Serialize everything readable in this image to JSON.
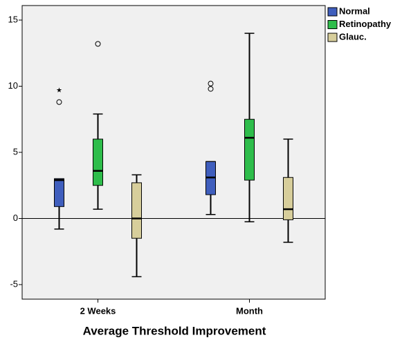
{
  "chart_data": {
    "type": "box",
    "x_label": "Average Threshold Improvement",
    "categories": [
      "2 Weeks",
      "Month"
    ],
    "ylim": [
      -6.1,
      16.1
    ],
    "yticks": [
      -5,
      0,
      5,
      10,
      15
    ],
    "reference_line": 0,
    "legend": "right",
    "series": [
      {
        "name": "Normal",
        "color": "#3f5ebd",
        "min": [
          -0.8,
          0.3
        ],
        "q1": [
          0.9,
          1.8
        ],
        "median": [
          2.9,
          3.1
        ],
        "q3": [
          3.0,
          4.3
        ],
        "max": [
          3.0,
          4.3
        ],
        "outliers": [
          [
            8.8
          ],
          [
            10.2,
            9.8
          ]
        ],
        "extremes": [
          [
            9.7
          ],
          []
        ]
      },
      {
        "name": "Retinopathy",
        "color": "#2ebd4b",
        "min": [
          0.7,
          -0.25
        ],
        "q1": [
          2.5,
          2.9
        ],
        "median": [
          3.6,
          6.1
        ],
        "q3": [
          6.0,
          7.5
        ],
        "max": [
          7.9,
          14.0
        ],
        "outliers": [
          [
            13.2
          ],
          []
        ],
        "extremes": [
          [],
          []
        ]
      },
      {
        "name": "Glauc.",
        "color": "#d7ce9b",
        "min": [
          -4.4,
          -1.8
        ],
        "q1": [
          -1.5,
          -0.1
        ],
        "median": [
          0,
          0.7
        ],
        "q3": [
          2.7,
          3.1
        ],
        "max": [
          3.3,
          6.0
        ],
        "outliers": [
          [],
          []
        ],
        "extremes": [
          [],
          []
        ]
      }
    ]
  }
}
